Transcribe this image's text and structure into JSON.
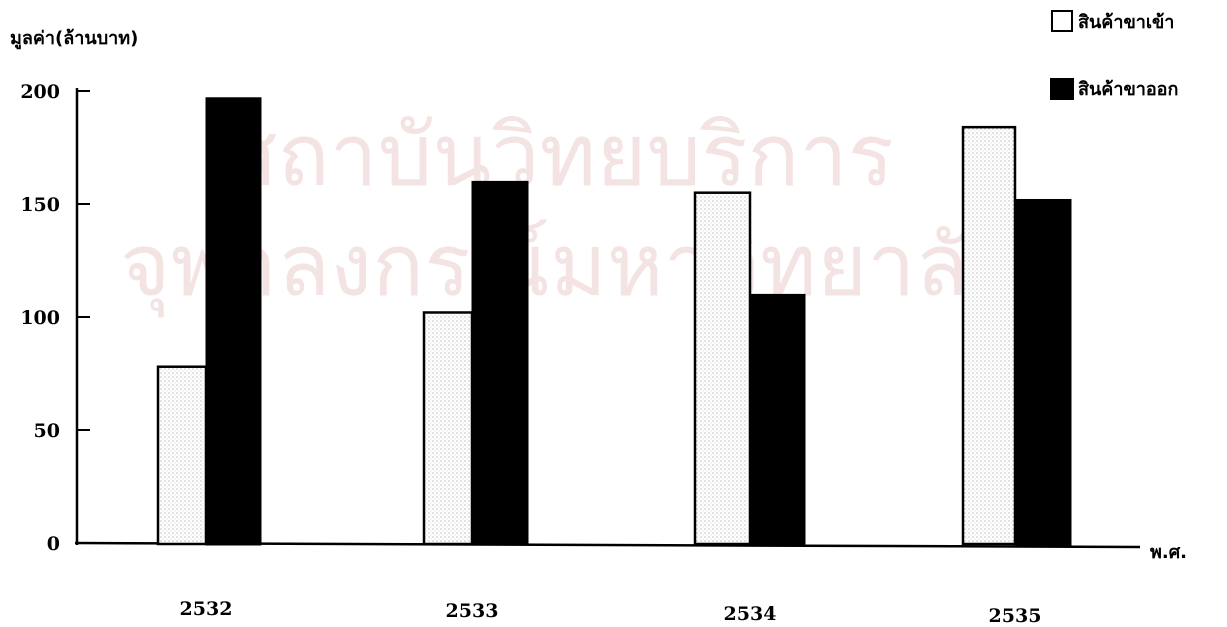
{
  "chart_data": {
    "type": "bar",
    "ylabel": "มูลค่า(ล้านบาท)",
    "xlabel": "พ.ศ.",
    "categories": [
      "2532",
      "2533",
      "2534",
      "2535"
    ],
    "series": [
      {
        "name": "สินค้าขาเข้า",
        "values": [
          78,
          102,
          155,
          184
        ],
        "fill": "dotted-light"
      },
      {
        "name": "สินค้าขาออก",
        "values": [
          197,
          160,
          110,
          152
        ],
        "fill": "#000000"
      }
    ],
    "ylim": [
      0,
      200
    ],
    "yticks": [
      0,
      50,
      100,
      150,
      200
    ],
    "legend_position": "top-right",
    "grid": false
  },
  "watermark": {
    "line1": "สถาบันวิทยบริการ",
    "line2": "จุฬาลงกรณ์มหาวิทยาลัย",
    "color": "#f4e3e3"
  }
}
